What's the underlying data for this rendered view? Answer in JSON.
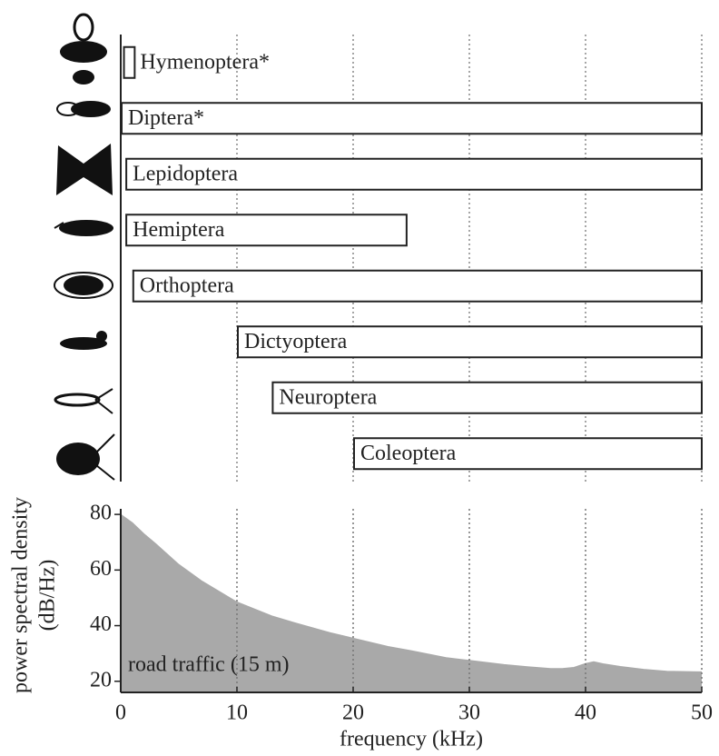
{
  "chart_data": [
    {
      "type": "range_bar",
      "categories": [
        "Hymenoptera*",
        "Diptera*",
        "Lepidoptera",
        "Hemiptera",
        "Orthoptera",
        "Dictyoptera",
        "Neuroptera",
        "Coleoptera"
      ],
      "starts": [
        0.2,
        0,
        0.4,
        0.4,
        1,
        10,
        13,
        20
      ],
      "ends": [
        1.2,
        50,
        50,
        24.6,
        50,
        50,
        50,
        50
      ],
      "color": "#ffffff",
      "xlim": [
        0,
        50
      ],
      "xticks": [
        0,
        10,
        20,
        30,
        40,
        50
      ],
      "grid": true
    },
    {
      "type": "area",
      "x": [
        0,
        1,
        2,
        3,
        5,
        7,
        10,
        13,
        15,
        18,
        20,
        23,
        25,
        28,
        30,
        33,
        35,
        37,
        38,
        39,
        40,
        40.7,
        41.5,
        43,
        45,
        47,
        50
      ],
      "values": [
        80,
        77,
        73,
        69.5,
        62,
        56,
        48.5,
        43.5,
        41,
        37.5,
        35.5,
        32.5,
        31,
        28.5,
        27.5,
        26,
        25.2,
        24.6,
        24.6,
        25,
        26.4,
        27,
        26.3,
        25.3,
        24.3,
        23.6,
        23.4
      ],
      "color": "#a9a9a9",
      "xlim": [
        0,
        50
      ],
      "xticks": [
        0,
        10,
        20,
        30,
        40,
        50
      ],
      "ylim": [
        16,
        82
      ],
      "yticks": [
        20,
        40,
        60,
        80
      ],
      "grid": true,
      "xlabel": "frequency (kHz)",
      "ylabel": [
        "power spectral density",
        "(dB/Hz)"
      ],
      "annotation": "road traffic (15 m)"
    }
  ]
}
